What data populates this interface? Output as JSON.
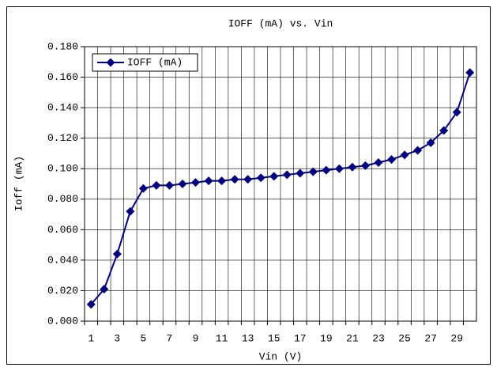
{
  "chart_data": {
    "type": "line",
    "title": "IOFF (mA) vs. Vin",
    "x_label": "Vin (V)",
    "y_label": "Ioff (mA)",
    "categories": [
      1,
      null,
      3,
      null,
      5,
      null,
      7,
      null,
      9,
      null,
      11,
      null,
      13,
      null,
      15,
      null,
      17,
      null,
      19,
      null,
      21,
      null,
      23,
      null,
      25,
      null,
      27,
      null,
      29,
      null
    ],
    "series": [
      {
        "name": "IOFF (mA)",
        "color": "#000080",
        "values": [
          0.011,
          0.021,
          0.044,
          0.072,
          0.087,
          0.089,
          0.089,
          0.09,
          0.091,
          0.092,
          0.092,
          0.093,
          0.093,
          0.094,
          0.095,
          0.096,
          0.097,
          0.098,
          0.099,
          0.1,
          0.101,
          0.102,
          0.104,
          0.106,
          0.109,
          0.112,
          0.117,
          0.125,
          0.137,
          0.163
        ]
      }
    ],
    "ylim": [
      0,
      0.18
    ],
    "yticks": [
      {
        "value": 0,
        "label": "0.000"
      },
      {
        "value": 0.02,
        "label": "0.020"
      },
      {
        "value": 0.04,
        "label": "0.040"
      },
      {
        "value": 0.06,
        "label": "0.060"
      },
      {
        "value": 0.08,
        "label": "0.080"
      },
      {
        "value": 0.1,
        "label": "0.100"
      },
      {
        "value": 0.12,
        "label": "0.120"
      },
      {
        "value": 0.14,
        "label": "0.140"
      },
      {
        "value": 0.16,
        "label": "0.160"
      },
      {
        "value": 0.18,
        "label": "0.180"
      }
    ],
    "grid": true,
    "legend": "top-left"
  }
}
